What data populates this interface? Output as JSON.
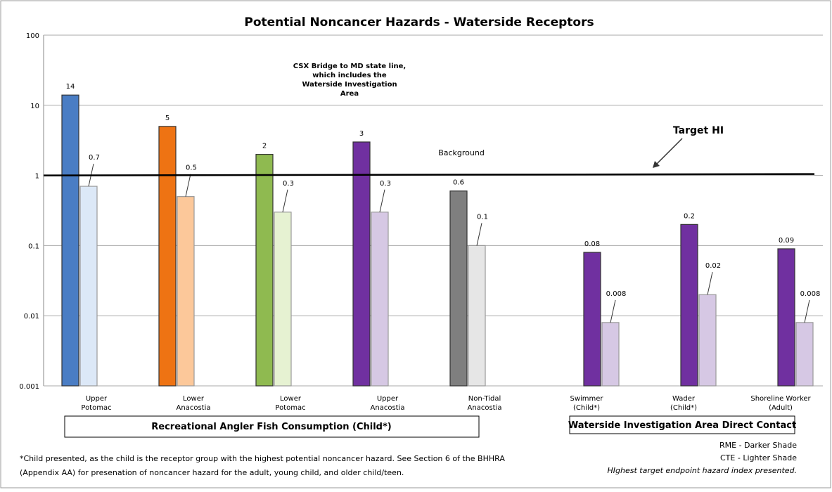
{
  "chart_data": {
    "type": "bar",
    "title": "Potential Noncancer Hazards - Waterside Receptors",
    "categories": [
      "Upper\nPotomac",
      "Lower\nAnacostia",
      "Lower\nPotomac",
      "Upper\nAnacostia",
      "Non-Tidal\nAnacostia",
      "Swimmer\n(Child*)",
      "Wader\n(Child*)",
      "Shoreline Worker\n(Adult)"
    ],
    "series": [
      {
        "values": [
          14,
          5,
          2,
          3,
          0.6,
          0.08,
          0.2,
          0.09
        ],
        "colors": [
          "#4a7dc4",
          "#ee7313",
          "#8fba50",
          "#7030a0",
          "#7f7f7f",
          "#7030a0",
          "#7030a0",
          "#7030a0"
        ]
      },
      {
        "values": [
          0.7,
          0.5,
          0.3,
          0.3,
          0.1,
          0.008,
          0.02,
          0.008
        ],
        "colors": [
          "#dce8f7",
          "#fcc89a",
          "#e6f2d2",
          "#d6c8e4",
          "#e6e6e6",
          "#d6c8e4",
          "#d6c8e4",
          "#d6c8e4"
        ]
      }
    ],
    "ylim": [
      0.001,
      100
    ],
    "yticks": [
      0.001,
      0.01,
      0.1,
      1,
      10,
      100
    ],
    "log_scale": true,
    "grid": true,
    "target_line": 1,
    "annotations": {
      "target": "Target HI",
      "background": "Background",
      "csx": "CSX Bridge to MD state line,\nwhich includes the\nWaterside Investigation\nArea"
    },
    "groups": [
      "Recreational Angler Fish Consumption (Child*)",
      "Waterside Investigation Area Direct Contact"
    ],
    "footnote": [
      "*Child presented, as the child is the receptor group with the highest potential noncancer hazard.  See Section 6 of the BHHRA",
      "(Appendix AA) for presenation of noncancer hazard for the adult, young child, and older child/teen."
    ],
    "notes": [
      "RME - Darker Shade",
      "CTE - Lighter Shade",
      "HIghest target endpoint hazard index presented."
    ]
  }
}
